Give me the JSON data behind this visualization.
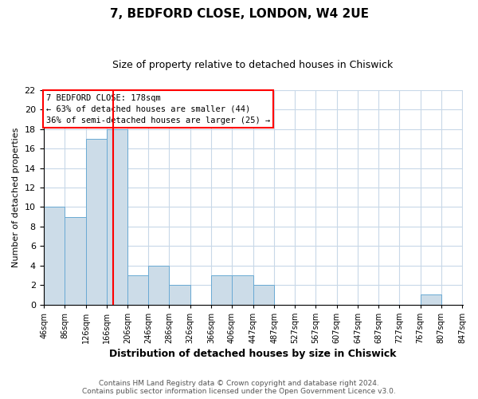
{
  "title": "7, BEDFORD CLOSE, LONDON, W4 2UE",
  "subtitle": "Size of property relative to detached houses in Chiswick",
  "xlabel": "Distribution of detached houses by size in Chiswick",
  "ylabel": "Number of detached properties",
  "footer_line1": "Contains HM Land Registry data © Crown copyright and database right 2024.",
  "footer_line2": "Contains public sector information licensed under the Open Government Licence v3.0.",
  "bin_labels": [
    "46sqm",
    "86sqm",
    "126sqm",
    "166sqm",
    "206sqm",
    "246sqm",
    "286sqm",
    "326sqm",
    "366sqm",
    "406sqm",
    "447sqm",
    "487sqm",
    "527sqm",
    "567sqm",
    "607sqm",
    "647sqm",
    "687sqm",
    "727sqm",
    "767sqm",
    "807sqm",
    "847sqm"
  ],
  "bar_heights": [
    10,
    9,
    17,
    18,
    3,
    4,
    2,
    0,
    3,
    3,
    2,
    0,
    0,
    0,
    0,
    0,
    0,
    0,
    1,
    0
  ],
  "bar_color": "#ccdce8",
  "bar_edge_color": "#6aaad4",
  "grid_color": "#c8d8e8",
  "red_line_x": 178,
  "bin_edges": [
    46,
    86,
    126,
    166,
    206,
    246,
    286,
    326,
    366,
    406,
    447,
    487,
    527,
    567,
    607,
    647,
    687,
    727,
    767,
    807,
    847
  ],
  "ylim": [
    0,
    22
  ],
  "yticks": [
    0,
    2,
    4,
    6,
    8,
    10,
    12,
    14,
    16,
    18,
    20,
    22
  ],
  "annotation_text": "7 BEDFORD CLOSE: 178sqm\n← 63% of detached houses are smaller (44)\n36% of semi-detached houses are larger (25) →",
  "annotation_box_color": "white",
  "annotation_box_edge_color": "red",
  "background_color": "white",
  "plot_bg_color": "white",
  "title_fontsize": 11,
  "subtitle_fontsize": 9,
  "ylabel_fontsize": 8,
  "xlabel_fontsize": 9,
  "annotation_fontsize": 7.5,
  "footer_fontsize": 6.5
}
